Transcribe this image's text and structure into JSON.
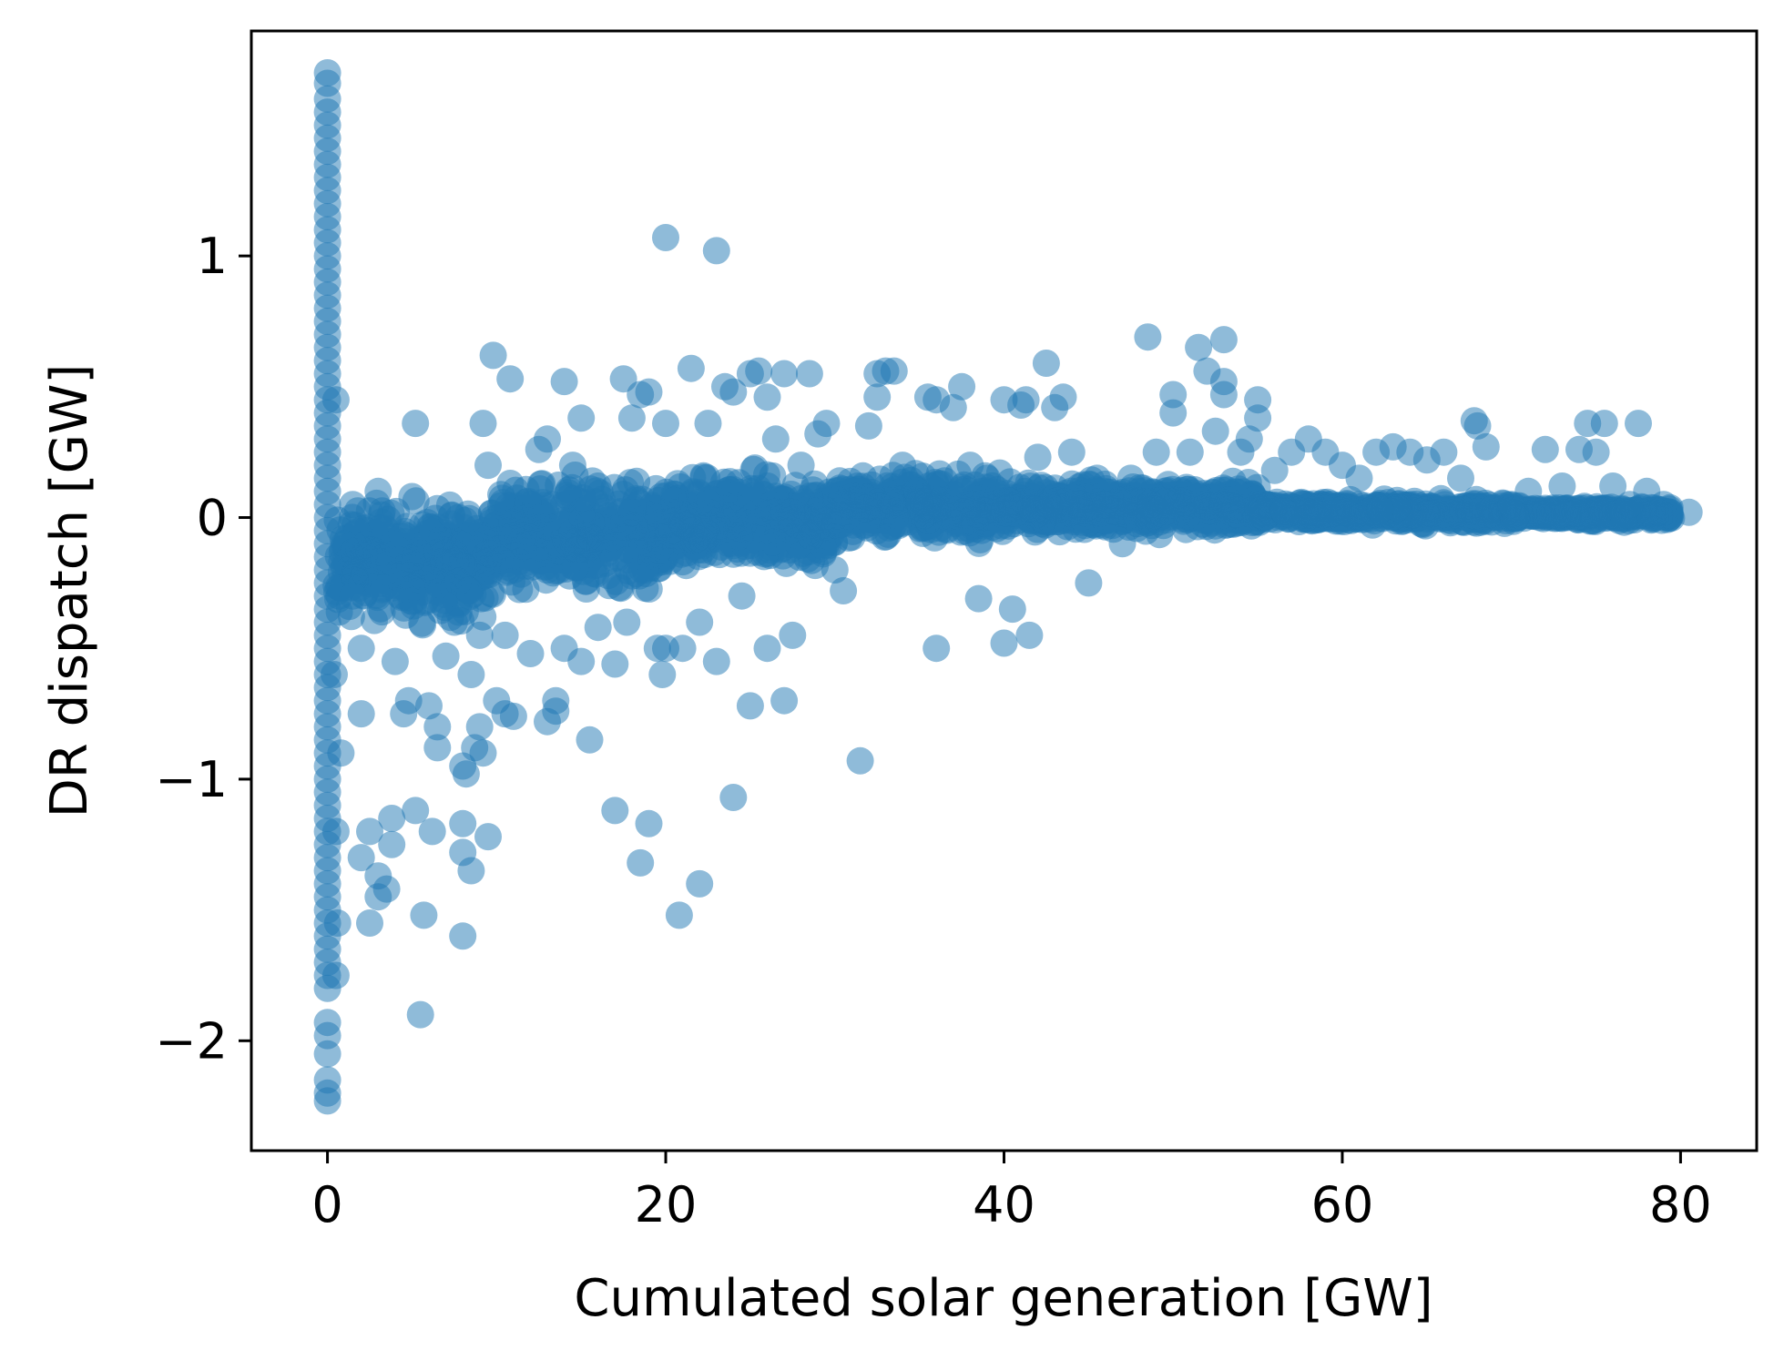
{
  "chart_data": {
    "type": "scatter",
    "title": "",
    "xlabel": "Cumulated solar generation [GW]",
    "ylabel": "DR dispatch [GW]",
    "xlim": [
      -4.5,
      84.5
    ],
    "ylim": [
      -2.42,
      1.86
    ],
    "xticks": [
      0,
      20,
      40,
      60,
      80
    ],
    "xtick_labels": [
      "0",
      "20",
      "40",
      "60",
      "80"
    ],
    "yticks": [
      -2,
      -1,
      0,
      1
    ],
    "ytick_labels": [
      "−2",
      "−1",
      "0",
      "1"
    ],
    "grid": false,
    "legend": "none",
    "marker_color": "#1f77b4",
    "marker_alpha": 0.5,
    "series": [
      {
        "points": [
          [
            0,
            1.7
          ],
          [
            0,
            1.66
          ],
          [
            0,
            1.6
          ],
          [
            0,
            1.55
          ],
          [
            0,
            1.5
          ],
          [
            0,
            1.45
          ],
          [
            0,
            1.4
          ],
          [
            0,
            1.35
          ],
          [
            0,
            1.3
          ],
          [
            0,
            1.25
          ],
          [
            0,
            1.2
          ],
          [
            0,
            1.15
          ],
          [
            0,
            1.1
          ],
          [
            0,
            1.05
          ],
          [
            0,
            1.0
          ],
          [
            0,
            0.95
          ],
          [
            0,
            0.9
          ],
          [
            0,
            0.85
          ],
          [
            0,
            0.8
          ],
          [
            0,
            0.75
          ],
          [
            0,
            0.7
          ],
          [
            0,
            0.65
          ],
          [
            0,
            0.6
          ],
          [
            0,
            0.55
          ],
          [
            0,
            0.5
          ],
          [
            0,
            0.45
          ],
          [
            0,
            0.4
          ],
          [
            0,
            0.35
          ],
          [
            0,
            0.3
          ],
          [
            0,
            0.25
          ],
          [
            0,
            0.2
          ],
          [
            0,
            0.15
          ],
          [
            0,
            0.1
          ],
          [
            0,
            0.05
          ],
          [
            0,
            0.0
          ],
          [
            0,
            -0.05
          ],
          [
            0,
            -0.1
          ],
          [
            0,
            -0.15
          ],
          [
            0,
            -0.2
          ],
          [
            0,
            -0.25
          ],
          [
            0,
            -0.3
          ],
          [
            0,
            -0.35
          ],
          [
            0,
            -0.4
          ],
          [
            0,
            -0.45
          ],
          [
            0,
            -0.5
          ],
          [
            0,
            -0.55
          ],
          [
            0,
            -0.6
          ],
          [
            0,
            -0.65
          ],
          [
            0,
            -0.7
          ],
          [
            0,
            -0.75
          ],
          [
            0,
            -0.8
          ],
          [
            0,
            -0.85
          ],
          [
            0,
            -0.9
          ],
          [
            0,
            -0.95
          ],
          [
            0,
            -1.0
          ],
          [
            0,
            -1.05
          ],
          [
            0,
            -1.1
          ],
          [
            0,
            -1.15
          ],
          [
            0,
            -1.2
          ],
          [
            0,
            -1.25
          ],
          [
            0,
            -1.3
          ],
          [
            0,
            -1.35
          ],
          [
            0,
            -1.4
          ],
          [
            0,
            -1.45
          ],
          [
            0,
            -1.5
          ],
          [
            0,
            -1.55
          ],
          [
            0,
            -1.6
          ],
          [
            0,
            -1.65
          ],
          [
            0,
            -1.7
          ],
          [
            0,
            -1.75
          ],
          [
            0,
            -1.8
          ],
          [
            0,
            -1.93
          ],
          [
            0,
            -1.98
          ],
          [
            0,
            -2.05
          ],
          [
            0,
            -2.15
          ],
          [
            0,
            -2.2
          ],
          [
            0,
            -2.23
          ],
          [
            0.5,
            -1.75
          ],
          [
            0.6,
            -1.55
          ],
          [
            0.5,
            -1.2
          ],
          [
            0.8,
            -0.9
          ],
          [
            0.4,
            -0.6
          ],
          [
            0.5,
            0.45
          ],
          [
            0.7,
            -0.3
          ],
          [
            1.0,
            -0.1
          ],
          [
            1.5,
            0.05
          ],
          [
            1.5,
            -0.3
          ],
          [
            2,
            -0.5
          ],
          [
            2,
            -0.75
          ],
          [
            2,
            -1.3
          ],
          [
            2.5,
            -1.2
          ],
          [
            2.5,
            -1.55
          ],
          [
            3,
            -1.37
          ],
          [
            3,
            -1.45
          ],
          [
            3,
            0.1
          ],
          [
            3.5,
            -1.42
          ],
          [
            3.8,
            -1.25
          ],
          [
            3.8,
            -1.15
          ],
          [
            4,
            -0.55
          ],
          [
            4.5,
            -0.75
          ],
          [
            4.8,
            -0.7
          ],
          [
            5,
            0.08
          ],
          [
            5.2,
            0.36
          ],
          [
            5.2,
            -1.12
          ],
          [
            5.5,
            -1.9
          ],
          [
            5.7,
            -1.52
          ],
          [
            6,
            -0.72
          ],
          [
            6.2,
            -1.2
          ],
          [
            6.5,
            -0.8
          ],
          [
            6.5,
            -0.88
          ],
          [
            7,
            -0.53
          ],
          [
            7.5,
            -0.4
          ],
          [
            8,
            -0.95
          ],
          [
            8,
            -1.17
          ],
          [
            8,
            -1.28
          ],
          [
            8,
            -1.6
          ],
          [
            8.2,
            -0.98
          ],
          [
            8.5,
            -0.6
          ],
          [
            8.5,
            -1.35
          ],
          [
            8.7,
            -0.88
          ],
          [
            9,
            -0.8
          ],
          [
            9,
            -0.45
          ],
          [
            9.2,
            -0.9
          ],
          [
            9.2,
            0.36
          ],
          [
            9.5,
            -1.22
          ],
          [
            9.5,
            0.2
          ],
          [
            9.8,
            0.62
          ],
          [
            10,
            -0.7
          ],
          [
            10.5,
            -0.75
          ],
          [
            10.5,
            -0.45
          ],
          [
            10.8,
            0.53
          ],
          [
            11,
            -0.2
          ],
          [
            11,
            -0.76
          ],
          [
            12,
            -0.52
          ],
          [
            12.5,
            0.26
          ],
          [
            13,
            0.3
          ],
          [
            13,
            -0.78
          ],
          [
            13.5,
            -0.7
          ],
          [
            13.5,
            -0.74
          ],
          [
            14,
            0.52
          ],
          [
            14,
            -0.5
          ],
          [
            14.5,
            0.2
          ],
          [
            15,
            0.38
          ],
          [
            15,
            -0.55
          ],
          [
            15.5,
            -0.85
          ],
          [
            16,
            0.12
          ],
          [
            16,
            -0.42
          ],
          [
            17,
            -0.56
          ],
          [
            17,
            -1.12
          ],
          [
            17.5,
            0.53
          ],
          [
            17.7,
            -0.4
          ],
          [
            18,
            0.38
          ],
          [
            18.5,
            0.47
          ],
          [
            18.5,
            -1.32
          ],
          [
            18.8,
            -0.2
          ],
          [
            19,
            0.48
          ],
          [
            19,
            -1.17
          ],
          [
            19.5,
            -0.5
          ],
          [
            19.8,
            -0.6
          ],
          [
            20,
            -0.5
          ],
          [
            20,
            1.07
          ],
          [
            20,
            0.36
          ],
          [
            20.8,
            -1.52
          ],
          [
            21,
            -0.5
          ],
          [
            21.5,
            0.57
          ],
          [
            22,
            -1.4
          ],
          [
            22,
            -0.4
          ],
          [
            22.5,
            0.36
          ],
          [
            23,
            1.02
          ],
          [
            23,
            -0.55
          ],
          [
            23.5,
            0.5
          ],
          [
            24,
            -1.07
          ],
          [
            24,
            0.48
          ],
          [
            24.5,
            -0.3
          ],
          [
            25,
            0.55
          ],
          [
            25,
            -0.72
          ],
          [
            25.5,
            0.56
          ],
          [
            26,
            0.46
          ],
          [
            26,
            -0.5
          ],
          [
            26.5,
            0.3
          ],
          [
            27,
            0.55
          ],
          [
            27,
            -0.7
          ],
          [
            27.5,
            -0.45
          ],
          [
            28,
            0.2
          ],
          [
            28.5,
            0.55
          ],
          [
            29,
            0.32
          ],
          [
            29.5,
            0.36
          ],
          [
            30,
            -0.2
          ],
          [
            30.5,
            -0.28
          ],
          [
            31,
            0.1
          ],
          [
            31.5,
            -0.93
          ],
          [
            32,
            0.35
          ],
          [
            32.5,
            0.46
          ],
          [
            32.5,
            0.55
          ],
          [
            33,
            0.56
          ],
          [
            33.5,
            0.56
          ],
          [
            34,
            0.2
          ],
          [
            35,
            0.06
          ],
          [
            35.5,
            0.46
          ],
          [
            36,
            -0.5
          ],
          [
            36,
            0.45
          ],
          [
            37,
            0.42
          ],
          [
            37.5,
            0.5
          ],
          [
            38,
            0.2
          ],
          [
            38.5,
            -0.31
          ],
          [
            39,
            0.15
          ],
          [
            40,
            0.45
          ],
          [
            40,
            -0.48
          ],
          [
            40.5,
            -0.35
          ],
          [
            41,
            0.43
          ],
          [
            41.3,
            0.45
          ],
          [
            41.5,
            -0.45
          ],
          [
            42,
            0.23
          ],
          [
            42.5,
            0.59
          ],
          [
            43,
            0.42
          ],
          [
            43.5,
            0.46
          ],
          [
            44,
            0.25
          ],
          [
            45,
            -0.25
          ],
          [
            45.5,
            0.15
          ],
          [
            46,
            0.05
          ],
          [
            47,
            -0.1
          ],
          [
            47.5,
            0.15
          ],
          [
            48,
            0.1
          ],
          [
            48.5,
            0.69
          ],
          [
            49,
            0.25
          ],
          [
            50,
            0.47
          ],
          [
            50,
            0.4
          ],
          [
            51,
            0.25
          ],
          [
            51.5,
            0.65
          ],
          [
            52,
            0.56
          ],
          [
            52.5,
            0.33
          ],
          [
            53,
            0.68
          ],
          [
            53,
            0.52
          ],
          [
            53,
            0.47
          ],
          [
            54,
            0.25
          ],
          [
            54.5,
            0.3
          ],
          [
            55,
            0.45
          ],
          [
            55,
            0.38
          ],
          [
            56,
            0.18
          ],
          [
            57,
            0.25
          ],
          [
            58,
            0.3
          ],
          [
            59,
            0.25
          ],
          [
            60,
            0.2
          ],
          [
            61,
            0.15
          ],
          [
            62,
            0.25
          ],
          [
            63,
            0.27
          ],
          [
            64,
            0.25
          ],
          [
            65,
            0.22
          ],
          [
            66,
            0.25
          ],
          [
            67,
            0.15
          ],
          [
            67.8,
            0.37
          ],
          [
            68,
            0.35
          ],
          [
            68.5,
            0.27
          ],
          [
            70,
            0.05
          ],
          [
            71,
            0.1
          ],
          [
            72,
            0.26
          ],
          [
            73,
            0.12
          ],
          [
            74,
            0.26
          ],
          [
            74.5,
            0.36
          ],
          [
            75,
            0.25
          ],
          [
            75.5,
            0.36
          ],
          [
            76,
            0.12
          ],
          [
            77,
            0.05
          ],
          [
            77.5,
            0.36
          ],
          [
            78,
            0.1
          ],
          [
            79,
            0.05
          ],
          [
            80.5,
            0.02
          ]
        ],
        "dense_band": [
          {
            "x0": 0.5,
            "x1": 10,
            "ymin": -0.45,
            "ymax": 0.12
          },
          {
            "x0": 10,
            "x1": 20,
            "ymin": -0.35,
            "ymax": 0.2
          },
          {
            "x0": 20,
            "x1": 30,
            "ymin": -0.25,
            "ymax": 0.22
          },
          {
            "x0": 30,
            "x1": 40,
            "ymin": -0.12,
            "ymax": 0.2
          },
          {
            "x0": 40,
            "x1": 55,
            "ymin": -0.08,
            "ymax": 0.16
          },
          {
            "x0": 55,
            "x1": 70,
            "ymin": -0.04,
            "ymax": 0.08
          },
          {
            "x0": 70,
            "x1": 79.5,
            "ymin": -0.02,
            "ymax": 0.05
          }
        ]
      }
    ]
  }
}
